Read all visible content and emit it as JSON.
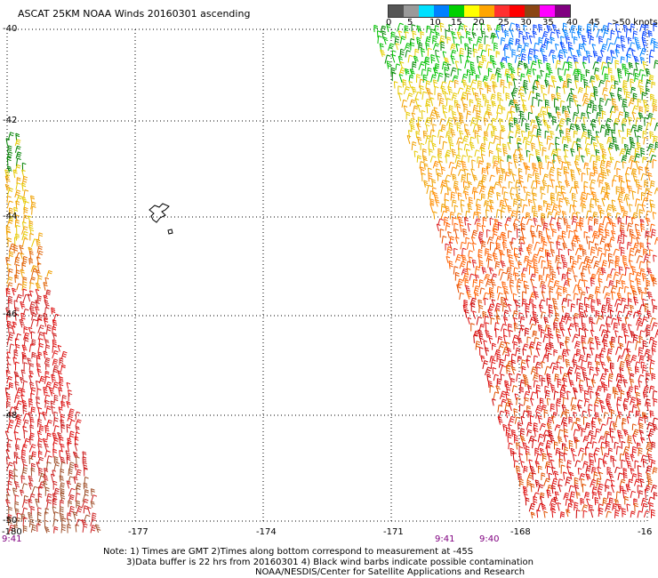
{
  "title": "ASCAT 25KM NOAA Winds 20160301 ascending",
  "legend": {
    "labels": [
      "0",
      "5",
      "10",
      "15",
      "20",
      "25",
      "30",
      "35",
      "40",
      "45",
      ">50 knots"
    ],
    "colors": [
      "#555555",
      "#9a9a9a",
      "#00e0ff",
      "#0080ff",
      "#00d000",
      "#ffff00",
      "#ffa500",
      "#ff3030",
      "#ff0000",
      "#8b4513",
      "#ff00ff",
      "#800080"
    ]
  },
  "lat_labels": [
    "-40",
    "-42",
    "-44",
    "-46",
    "-48",
    "-50"
  ],
  "lon_labels": [
    "-180",
    "-177",
    "-174",
    "-171",
    "-168",
    "-16"
  ],
  "time_labels": [
    "9:41",
    "9:41",
    "9:40"
  ],
  "notes": [
    "Note: 1) Times are GMT 2)Times along bottom correspond to measurement at -45S",
    "3)Data buffer is 22 hrs from 20160301 4) Black wind barbs indicate possible contamination",
    "NOAA/NESDIS/Center for Satellite Applications and Research"
  ]
}
